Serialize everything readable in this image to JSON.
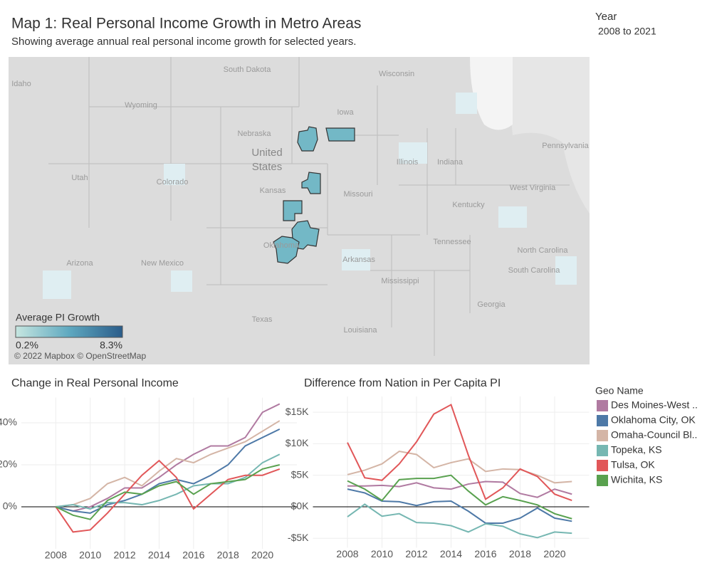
{
  "header": {
    "title": "Map 1: Real Personal Income Growth in Metro Areas",
    "subtitle": "Showing average annual real personal income growth for selected years."
  },
  "filter": {
    "label": "Year",
    "value": "2008 to 2021"
  },
  "map": {
    "labels": [
      "South Dakota",
      "Wisconsin",
      "Idaho",
      "Wyoming",
      "Nebraska",
      "Iowa",
      "United",
      "States",
      "Utah",
      "Colorado",
      "Kansas",
      "Missouri",
      "Illinois",
      "Indiana",
      "Pennsylvania",
      "West Virginia",
      "Kentucky",
      "Tennessee",
      "Arizona",
      "New Mexico",
      "Oklahoma",
      "Arkansas",
      "Mississippi",
      "Texas",
      "Louisiana",
      "Georgia",
      "North Carolina",
      "South Carolina"
    ],
    "legend": {
      "title": "Average PI Growth",
      "min": "0.2%",
      "max": "8.3%"
    },
    "attribution": "© 2022 Mapbox © OpenStreetMap"
  },
  "legend": {
    "title": "Geo Name"
  },
  "chart_data": [
    {
      "type": "line",
      "title": "Change in Real Personal Income",
      "x": [
        2008,
        2009,
        2010,
        2011,
        2012,
        2013,
        2014,
        2015,
        2016,
        2017,
        2018,
        2019,
        2020,
        2021
      ],
      "xlim": [
        2006,
        2022
      ],
      "xticks": [
        2008,
        2010,
        2012,
        2014,
        2016,
        2018,
        2020
      ],
      "ylim": [
        -20,
        52
      ],
      "yticks": [
        {
          "value": 0,
          "label": "0%"
        },
        {
          "value": 20,
          "label": "20%"
        },
        {
          "value": 40,
          "label": "40%"
        }
      ],
      "grid": true,
      "series": [
        {
          "name": "Des Moines-West ..",
          "color": "#b07aa1",
          "values": [
            0,
            -2,
            0,
            4,
            9,
            9,
            14,
            20,
            25,
            29,
            29,
            33,
            45,
            49
          ]
        },
        {
          "name": "Oklahoma City, OK",
          "color": "#4e79a7",
          "values": [
            0,
            -2,
            -3,
            1,
            3,
            6,
            11,
            13,
            11,
            15,
            20,
            29,
            33,
            37
          ]
        },
        {
          "name": "Omaha-Council Bl..",
          "color": "#d4b5a6",
          "values": [
            0,
            1,
            4,
            11,
            14,
            10,
            17,
            23,
            21,
            25,
            28,
            31,
            36,
            41
          ]
        },
        {
          "name": "Topeka, KS",
          "color": "#76b7b2",
          "values": [
            0,
            1,
            -1,
            2,
            2,
            1,
            3,
            6,
            10,
            11,
            11,
            14,
            21,
            25
          ]
        },
        {
          "name": "Tulsa, OK",
          "color": "#e15759",
          "values": [
            0,
            -12,
            -11,
            -3,
            6,
            15,
            22,
            14,
            -1,
            6,
            13,
            15,
            15,
            18
          ]
        },
        {
          "name": "Wichita, KS",
          "color": "#59a14f",
          "values": [
            0,
            -4,
            -6,
            3,
            7,
            6,
            10,
            12,
            6,
            11,
            12,
            13,
            18,
            20
          ]
        }
      ]
    },
    {
      "type": "line",
      "title": "Difference from Nation in Per Capita PI",
      "x": [
        2008,
        2009,
        2010,
        2011,
        2012,
        2013,
        2014,
        2015,
        2016,
        2017,
        2018,
        2019,
        2020,
        2021
      ],
      "xlim": [
        2006,
        2022
      ],
      "xticks": [
        2008,
        2010,
        2012,
        2014,
        2016,
        2018,
        2020
      ],
      "ylim": [
        -6500,
        17500
      ],
      "yticks": [
        {
          "value": -5000,
          "label": "-$5K"
        },
        {
          "value": 0,
          "label": "$0K"
        },
        {
          "value": 5000,
          "label": "$5K"
        },
        {
          "value": 10000,
          "label": "$10K"
        },
        {
          "value": 15000,
          "label": "$15K"
        }
      ],
      "grid": true,
      "series": [
        {
          "color": "#b07aa1",
          "values": [
            3300,
            3300,
            3400,
            3200,
            3800,
            3000,
            2800,
            3600,
            4000,
            3900,
            2100,
            1500,
            2800,
            2000
          ]
        },
        {
          "color": "#4e79a7",
          "values": [
            2800,
            2200,
            900,
            800,
            200,
            800,
            900,
            -700,
            -2600,
            -2600,
            -1800,
            -200,
            -1800,
            -2300
          ]
        },
        {
          "color": "#d4b5a6",
          "values": [
            5100,
            5800,
            6800,
            8800,
            8300,
            6200,
            7000,
            7600,
            5600,
            6000,
            5900,
            5000,
            3800,
            4000
          ]
        },
        {
          "color": "#76b7b2",
          "values": [
            -1600,
            400,
            -1500,
            -1100,
            -2500,
            -2600,
            -3000,
            -4000,
            -2700,
            -3100,
            -4300,
            -4900,
            -4000,
            -4200
          ]
        },
        {
          "color": "#e15759",
          "values": [
            10200,
            4600,
            4200,
            6800,
            10300,
            14700,
            16200,
            8200,
            1200,
            3000,
            6000,
            4800,
            2000,
            1000
          ]
        },
        {
          "color": "#59a14f",
          "values": [
            4100,
            2800,
            1000,
            4300,
            4500,
            4500,
            5000,
            2500,
            300,
            1600,
            1000,
            300,
            -1100,
            -1900
          ]
        }
      ]
    }
  ]
}
